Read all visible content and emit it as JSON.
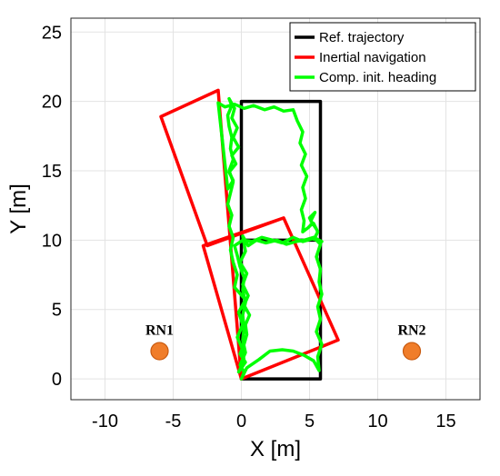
{
  "chart_data": {
    "type": "line",
    "title": "",
    "xlabel": "X [m]",
    "ylabel": "Y [m]",
    "xlim": [
      -12.5,
      17.5
    ],
    "ylim": [
      -1.5,
      26
    ],
    "xticks": [
      -10,
      -5,
      0,
      5,
      10,
      15
    ],
    "yticks": [
      0,
      5,
      10,
      15,
      20,
      25
    ],
    "grid": true,
    "legend_position": "top-right",
    "series": [
      {
        "name": "Ref. trajectory",
        "color": "#000000",
        "x": [
          0,
          5.8,
          5.8,
          0,
          0,
          5.8,
          5.8,
          0,
          0
        ],
        "y": [
          0,
          0,
          10,
          10,
          20,
          20,
          10,
          10,
          0
        ]
      },
      {
        "name": "Inertial navigation",
        "color": "#ff0000",
        "x": [
          0,
          7.1,
          3.1,
          -2.8,
          0,
          -1.7,
          -5.9,
          -2.5,
          3.1
        ],
        "y": [
          0,
          2.8,
          11.6,
          9.6,
          0,
          20.8,
          18.9,
          9.6,
          11.6
        ]
      },
      {
        "name": "Comp. init. heading",
        "color": "#00ff00",
        "x": [
          0,
          0.4,
          1.3,
          2.1,
          3.0,
          3.8,
          4.6,
          5.3,
          5.7,
          5.6,
          5.9,
          5.5,
          5.8,
          5.6,
          5.9,
          5.7,
          5.8,
          5.5,
          5.8,
          5.3,
          4.6,
          4.0,
          3.3,
          2.6,
          1.8,
          1.1,
          0.5,
          0.1,
          0.3,
          -0.1,
          0.4,
          0.1,
          0.5,
          0.2,
          0.6,
          0.3,
          0.4,
          0.2,
          -0.1,
          0.3,
          -0.2,
          0.2,
          0.1,
          -0.3,
          0.1,
          -0.2,
          0.3,
          -0.5,
          -0.3,
          -0.6,
          -0.8,
          -0.6,
          -0.9,
          -0.7,
          -1.0,
          -0.8,
          -0.6,
          -0.9,
          -0.6,
          -0.8,
          -0.7,
          -0.9,
          -1.0,
          -0.7,
          -0.9,
          -0.5,
          -0.7,
          -0.3,
          -0.6,
          -0.2,
          -0.7,
          -0.4,
          -0.9,
          -0.6,
          -1.0,
          -1.7,
          -1.2,
          -0.5,
          0.2,
          0.9,
          1.7,
          2.4,
          3.1,
          3.8,
          4.1,
          4.5,
          4.3,
          4.7,
          4.4,
          4.8,
          4.5,
          4.7,
          4.4,
          4.6,
          4.5,
          4.9,
          5.2,
          5.0,
          5.4,
          5.1,
          5.5,
          5.3,
          5.6,
          5.4,
          5.7,
          5.5,
          5.9,
          5.2,
          4.5,
          3.8,
          3.0,
          2.3,
          1.5,
          0.8,
          0.1,
          -0.5,
          -0.3,
          -0.1,
          0.2,
          0.1,
          0.3,
          0.1,
          0.2,
          0.1,
          0.3,
          -0.1,
          0.2,
          0
        ],
        "y": [
          0,
          0.8,
          1.4,
          2.0,
          2.1,
          2.0,
          1.7,
          1.3,
          0.6,
          1.6,
          2.5,
          3.4,
          4.3,
          5.2,
          6.1,
          7.0,
          7.9,
          8.8,
          9.7,
          10.2,
          10.0,
          9.9,
          9.7,
          10.0,
          9.8,
          10.0,
          9.6,
          10.3,
          9.2,
          8.4,
          7.6,
          6.8,
          6.0,
          5.3,
          4.6,
          3.9,
          3.2,
          2.5,
          1.8,
          1.2,
          0.5,
          1.3,
          2.1,
          3.0,
          3.9,
          4.8,
          5.7,
          6.6,
          7.5,
          8.4,
          9.3,
          10.2,
          11.0,
          11.8,
          12.6,
          13.4,
          14.2,
          15.0,
          15.8,
          16.6,
          17.4,
          18.2,
          19.0,
          19.7,
          20.2,
          19.5,
          18.8,
          18.1,
          17.4,
          16.7,
          16.1,
          15.5,
          14.9,
          14.3,
          13.7,
          19.9,
          19.6,
          19.8,
          19.5,
          19.7,
          19.4,
          19.6,
          19.3,
          19.4,
          18.6,
          17.8,
          17.0,
          16.2,
          15.4,
          14.6,
          13.8,
          13.0,
          12.2,
          11.4,
          10.6,
          10.9,
          11.2,
          11.6,
          12.0,
          11.4,
          10.8,
          11.2,
          10.6,
          10.2,
          9.8,
          10.1,
          9.9,
          10.1,
          9.9,
          10.2,
          9.8,
          10.0,
          10.2,
          9.9,
          10.0,
          9.6,
          8.9,
          8.1,
          7.3,
          6.4,
          5.5,
          4.6,
          3.7,
          2.8,
          1.9,
          1.0,
          0.5,
          0
        ]
      }
    ],
    "annotations": [
      {
        "label": "RN1",
        "x": -6,
        "y": 2,
        "color": "#f07d2a"
      },
      {
        "label": "RN2",
        "x": 12.5,
        "y": 2,
        "color": "#f07d2a"
      }
    ]
  }
}
